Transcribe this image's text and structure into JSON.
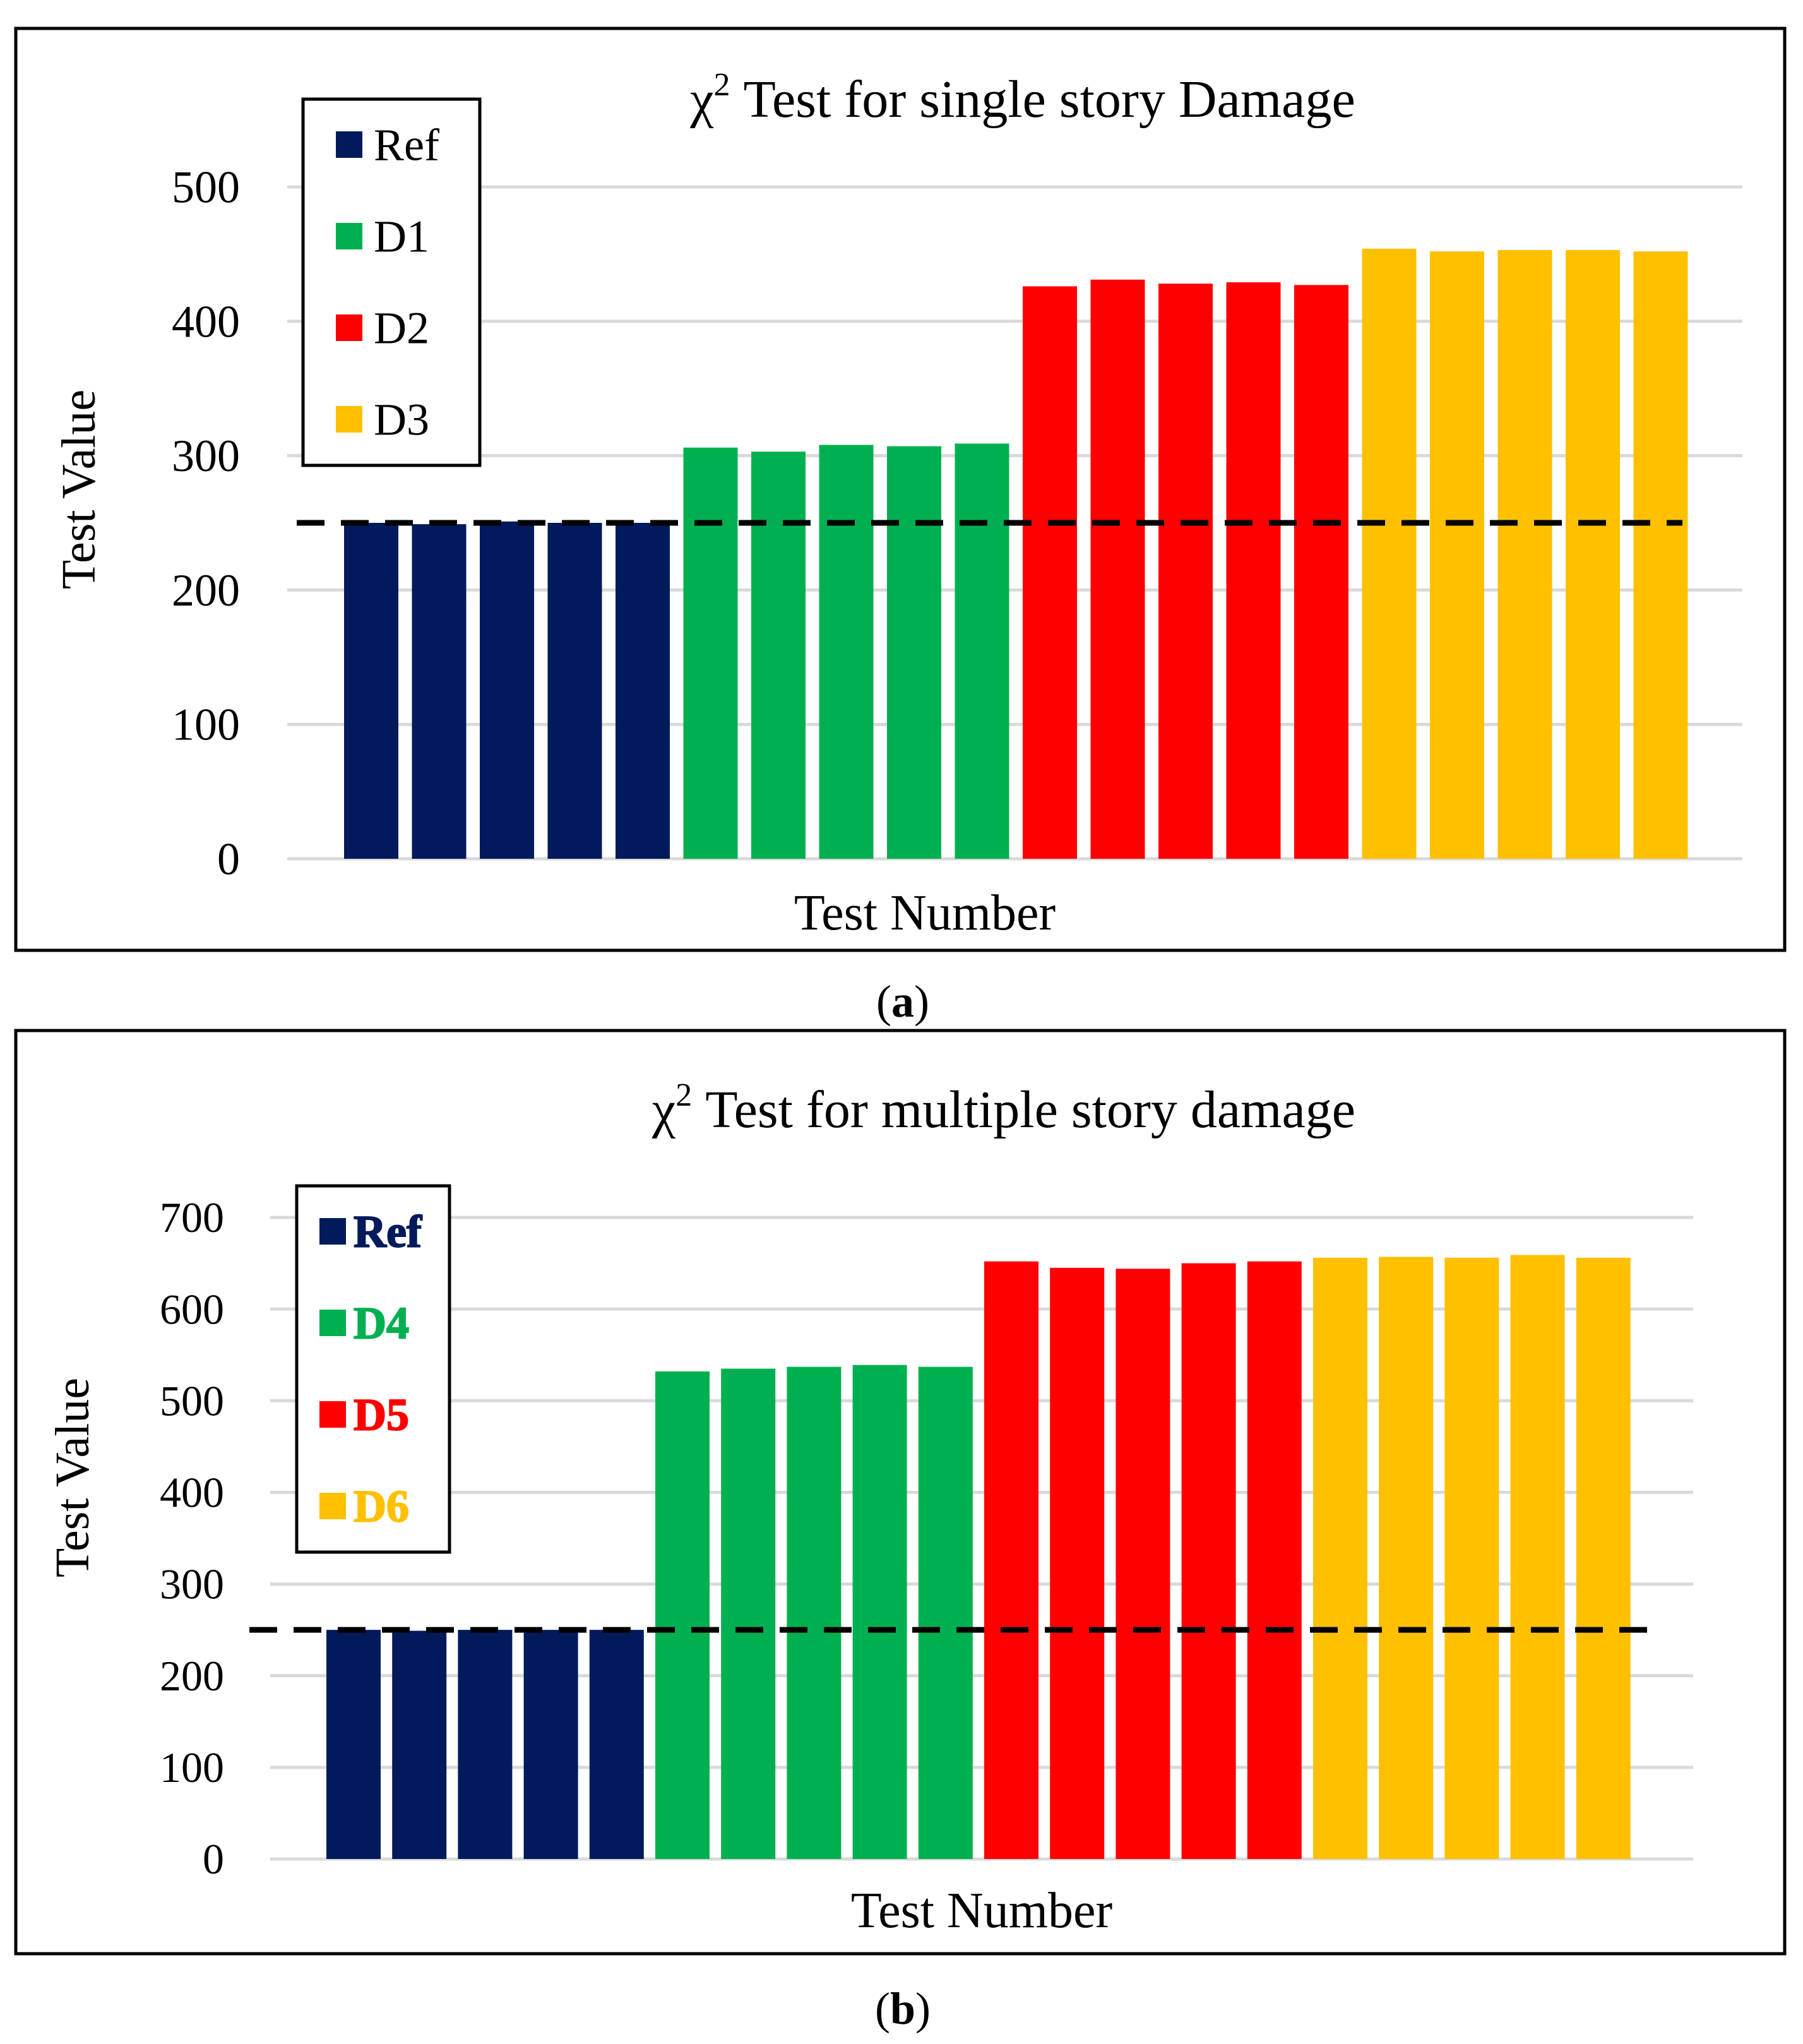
{
  "charts": [
    {
      "panel_label": "a",
      "title": {
        "symbol": "χ",
        "superscript": "2",
        "rest": " Test for single story Damage"
      },
      "chart_data": {
        "type": "bar",
        "title": "χ2 Test for single story Damage",
        "xlabel": "Test Number",
        "ylabel": "Test Value",
        "ylim": [
          0,
          500
        ],
        "yticks": [
          "0",
          "100",
          "200",
          "300",
          "400",
          "500"
        ],
        "grid": true,
        "legend_position": "top-left",
        "threshold": 250,
        "series": [
          {
            "name": "Ref",
            "color": "#001A5C",
            "values": [
              250,
              249,
              251,
              250,
              250
            ]
          },
          {
            "name": "D1",
            "color": "#00B050",
            "values": [
              306,
              303,
              308,
              307,
              309
            ]
          },
          {
            "name": "D2",
            "color": "#FF0000",
            "values": [
              426,
              431,
              428,
              429,
              427
            ]
          },
          {
            "name": "D3",
            "color": "#FFC000",
            "values": [
              454,
              452,
              453,
              453,
              452
            ]
          }
        ]
      },
      "legend_style": "normal"
    },
    {
      "panel_label": "b",
      "title": {
        "symbol": "χ",
        "superscript": "2",
        "rest": " Test for multiple story damage"
      },
      "chart_data": {
        "type": "bar",
        "title": "χ2 Test for multiple story damage",
        "xlabel": "Test Number",
        "ylabel": "Test Value",
        "ylim": [
          0,
          700
        ],
        "yticks": [
          "0",
          "100",
          "200",
          "300",
          "400",
          "500",
          "600",
          "700"
        ],
        "grid": true,
        "legend_position": "top-left",
        "threshold": 250,
        "series": [
          {
            "name": "Ref",
            "color": "#001A5C",
            "values": [
              250,
              249,
              250,
              250,
              250
            ]
          },
          {
            "name": "D4",
            "color": "#00B050",
            "values": [
              532,
              535,
              537,
              539,
              537
            ]
          },
          {
            "name": "D5",
            "color": "#FF0000",
            "values": [
              652,
              645,
              644,
              650,
              652
            ]
          },
          {
            "name": "D6",
            "color": "#FFC000",
            "values": [
              656,
              657,
              656,
              659,
              656
            ]
          }
        ]
      },
      "legend_style": "bold-colored"
    }
  ]
}
